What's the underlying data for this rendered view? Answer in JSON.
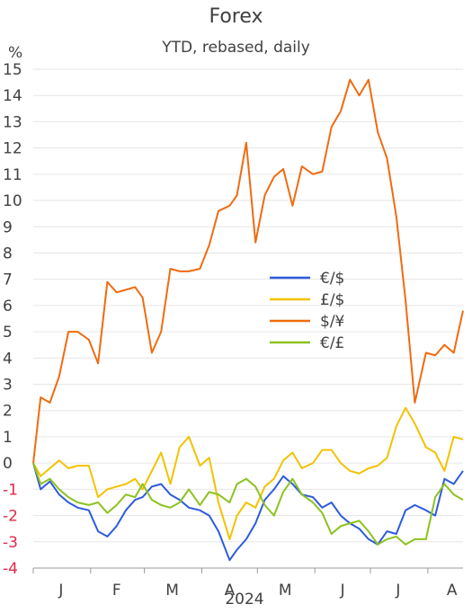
{
  "chart_data": {
    "type": "line",
    "title": "Forex",
    "subtitle": "YTD, rebased, daily",
    "ylabel": "%",
    "xlabel": "2024",
    "ylim": [
      -4,
      15
    ],
    "yticks": [
      15,
      14,
      13,
      12,
      11,
      10,
      9,
      8,
      7,
      6,
      5,
      4,
      3,
      2,
      1,
      0,
      -1,
      -2,
      -3,
      -4
    ],
    "xticks": [
      "J",
      "F",
      "M",
      "A",
      "M",
      "J",
      "J",
      "A"
    ],
    "x_range": [
      "2024-01-01",
      "2024-08-20"
    ],
    "grid": true,
    "legend_position": "center-right",
    "series": [
      {
        "name": "€/$",
        "color": "#2e5bdc",
        "x": [
          "2024-01-01",
          "2024-01-05",
          "2024-01-10",
          "2024-01-15",
          "2024-01-20",
          "2024-01-25",
          "2024-01-31",
          "2024-02-05",
          "2024-02-10",
          "2024-02-15",
          "2024-02-20",
          "2024-02-25",
          "2024-02-29",
          "2024-03-05",
          "2024-03-10",
          "2024-03-15",
          "2024-03-20",
          "2024-03-25",
          "2024-03-31",
          "2024-04-05",
          "2024-04-10",
          "2024-04-16",
          "2024-04-20",
          "2024-04-25",
          "2024-04-30",
          "2024-05-05",
          "2024-05-10",
          "2024-05-15",
          "2024-05-20",
          "2024-05-25",
          "2024-05-31",
          "2024-06-05",
          "2024-06-10",
          "2024-06-15",
          "2024-06-20",
          "2024-06-25",
          "2024-06-30",
          "2024-07-05",
          "2024-07-10",
          "2024-07-15",
          "2024-07-20",
          "2024-07-25",
          "2024-07-31",
          "2024-08-05",
          "2024-08-10",
          "2024-08-15",
          "2024-08-20"
        ],
        "y": [
          0,
          -1,
          -0.7,
          -1.2,
          -1.5,
          -1.7,
          -1.8,
          -2.6,
          -2.8,
          -2.4,
          -1.8,
          -1.4,
          -1.3,
          -0.9,
          -0.8,
          -1.2,
          -1.4,
          -1.7,
          -1.8,
          -2,
          -2.6,
          -3.7,
          -3.3,
          -2.9,
          -2.3,
          -1.4,
          -1,
          -0.5,
          -0.8,
          -1.2,
          -1.3,
          -1.7,
          -1.5,
          -2,
          -2.3,
          -2.5,
          -2.9,
          -3.1,
          -2.6,
          -2.7,
          -1.8,
          -1.6,
          -1.8,
          -2,
          -0.6,
          -0.8,
          -0.3
        ]
      },
      {
        "name": "£/$",
        "color": "#f2c200",
        "x": [
          "2024-01-01",
          "2024-01-05",
          "2024-01-10",
          "2024-01-15",
          "2024-01-20",
          "2024-01-25",
          "2024-01-31",
          "2024-02-05",
          "2024-02-10",
          "2024-02-15",
          "2024-02-20",
          "2024-02-25",
          "2024-02-29",
          "2024-03-05",
          "2024-03-10",
          "2024-03-15",
          "2024-03-20",
          "2024-03-25",
          "2024-03-31",
          "2024-04-05",
          "2024-04-10",
          "2024-04-16",
          "2024-04-20",
          "2024-04-25",
          "2024-04-30",
          "2024-05-05",
          "2024-05-10",
          "2024-05-15",
          "2024-05-20",
          "2024-05-25",
          "2024-05-31",
          "2024-06-05",
          "2024-06-10",
          "2024-06-15",
          "2024-06-20",
          "2024-06-25",
          "2024-06-30",
          "2024-07-05",
          "2024-07-10",
          "2024-07-15",
          "2024-07-20",
          "2024-07-25",
          "2024-07-31",
          "2024-08-05",
          "2024-08-10",
          "2024-08-15",
          "2024-08-20"
        ],
        "y": [
          0,
          -0.5,
          -0.2,
          0.1,
          -0.2,
          -0.1,
          -0.1,
          -1.3,
          -1,
          -0.9,
          -0.8,
          -0.6,
          -1,
          -0.3,
          0.4,
          -0.8,
          0.6,
          1,
          -0.1,
          0.2,
          -1.5,
          -2.9,
          -2,
          -1.5,
          -1.7,
          -0.9,
          -0.6,
          0.1,
          0.4,
          -0.2,
          0,
          0.5,
          0.5,
          0,
          -0.3,
          -0.4,
          -0.2,
          -0.1,
          0.2,
          1.4,
          2.1,
          1.5,
          0.6,
          0.4,
          -0.3,
          1,
          0.9
        ]
      },
      {
        "name": "$/¥",
        "color": "#f06b10",
        "x": [
          "2024-01-01",
          "2024-01-05",
          "2024-01-10",
          "2024-01-15",
          "2024-01-20",
          "2024-01-25",
          "2024-01-31",
          "2024-02-05",
          "2024-02-10",
          "2024-02-15",
          "2024-02-20",
          "2024-02-25",
          "2024-02-29",
          "2024-03-05",
          "2024-03-10",
          "2024-03-15",
          "2024-03-20",
          "2024-03-25",
          "2024-03-31",
          "2024-04-05",
          "2024-04-10",
          "2024-04-16",
          "2024-04-20",
          "2024-04-25",
          "2024-04-30",
          "2024-05-05",
          "2024-05-10",
          "2024-05-15",
          "2024-05-20",
          "2024-05-25",
          "2024-05-31",
          "2024-06-05",
          "2024-06-10",
          "2024-06-15",
          "2024-06-20",
          "2024-06-25",
          "2024-06-30",
          "2024-07-05",
          "2024-07-10",
          "2024-07-15",
          "2024-07-20",
          "2024-07-25",
          "2024-07-31",
          "2024-08-05",
          "2024-08-10",
          "2024-08-15",
          "2024-08-20"
        ],
        "y": [
          0,
          2.5,
          2.3,
          3.3,
          5,
          5,
          4.7,
          3.8,
          6.9,
          6.5,
          6.6,
          6.7,
          6.3,
          4.2,
          5,
          7.4,
          7.3,
          7.3,
          7.4,
          8.3,
          9.6,
          9.8,
          10.2,
          12.2,
          8.4,
          10.2,
          10.9,
          11.2,
          9.8,
          11.3,
          11,
          11.1,
          12.8,
          13.4,
          14.6,
          14,
          14.6,
          12.6,
          11.6,
          9.4,
          6.2,
          2.3,
          4.2,
          4.1,
          4.5,
          4.2,
          5.8
        ]
      },
      {
        "name": "€/£",
        "color": "#8cc21e",
        "x": [
          "2024-01-01",
          "2024-01-05",
          "2024-01-10",
          "2024-01-15",
          "2024-01-20",
          "2024-01-25",
          "2024-01-31",
          "2024-02-05",
          "2024-02-10",
          "2024-02-15",
          "2024-02-20",
          "2024-02-25",
          "2024-02-29",
          "2024-03-05",
          "2024-03-10",
          "2024-03-15",
          "2024-03-20",
          "2024-03-25",
          "2024-03-31",
          "2024-04-05",
          "2024-04-10",
          "2024-04-16",
          "2024-04-20",
          "2024-04-25",
          "2024-04-30",
          "2024-05-05",
          "2024-05-10",
          "2024-05-15",
          "2024-05-20",
          "2024-05-25",
          "2024-05-31",
          "2024-06-05",
          "2024-06-10",
          "2024-06-15",
          "2024-06-20",
          "2024-06-25",
          "2024-06-30",
          "2024-07-05",
          "2024-07-10",
          "2024-07-15",
          "2024-07-20",
          "2024-07-25",
          "2024-07-31",
          "2024-08-05",
          "2024-08-10",
          "2024-08-15",
          "2024-08-20"
        ],
        "y": [
          0,
          -0.8,
          -0.6,
          -1,
          -1.3,
          -1.5,
          -1.6,
          -1.5,
          -1.9,
          -1.6,
          -1.2,
          -1.3,
          -0.8,
          -1.4,
          -1.6,
          -1.7,
          -1.5,
          -1,
          -1.6,
          -1.1,
          -1.2,
          -1.5,
          -0.8,
          -0.6,
          -0.9,
          -1.6,
          -2,
          -1.1,
          -0.6,
          -1.2,
          -1.5,
          -1.9,
          -2.7,
          -2.4,
          -2.3,
          -2.2,
          -2.6,
          -3.1,
          -2.9,
          -2.8,
          -3.1,
          -2.9,
          -2.9,
          -1.3,
          -0.8,
          -1.2,
          -1.4
        ]
      }
    ]
  }
}
